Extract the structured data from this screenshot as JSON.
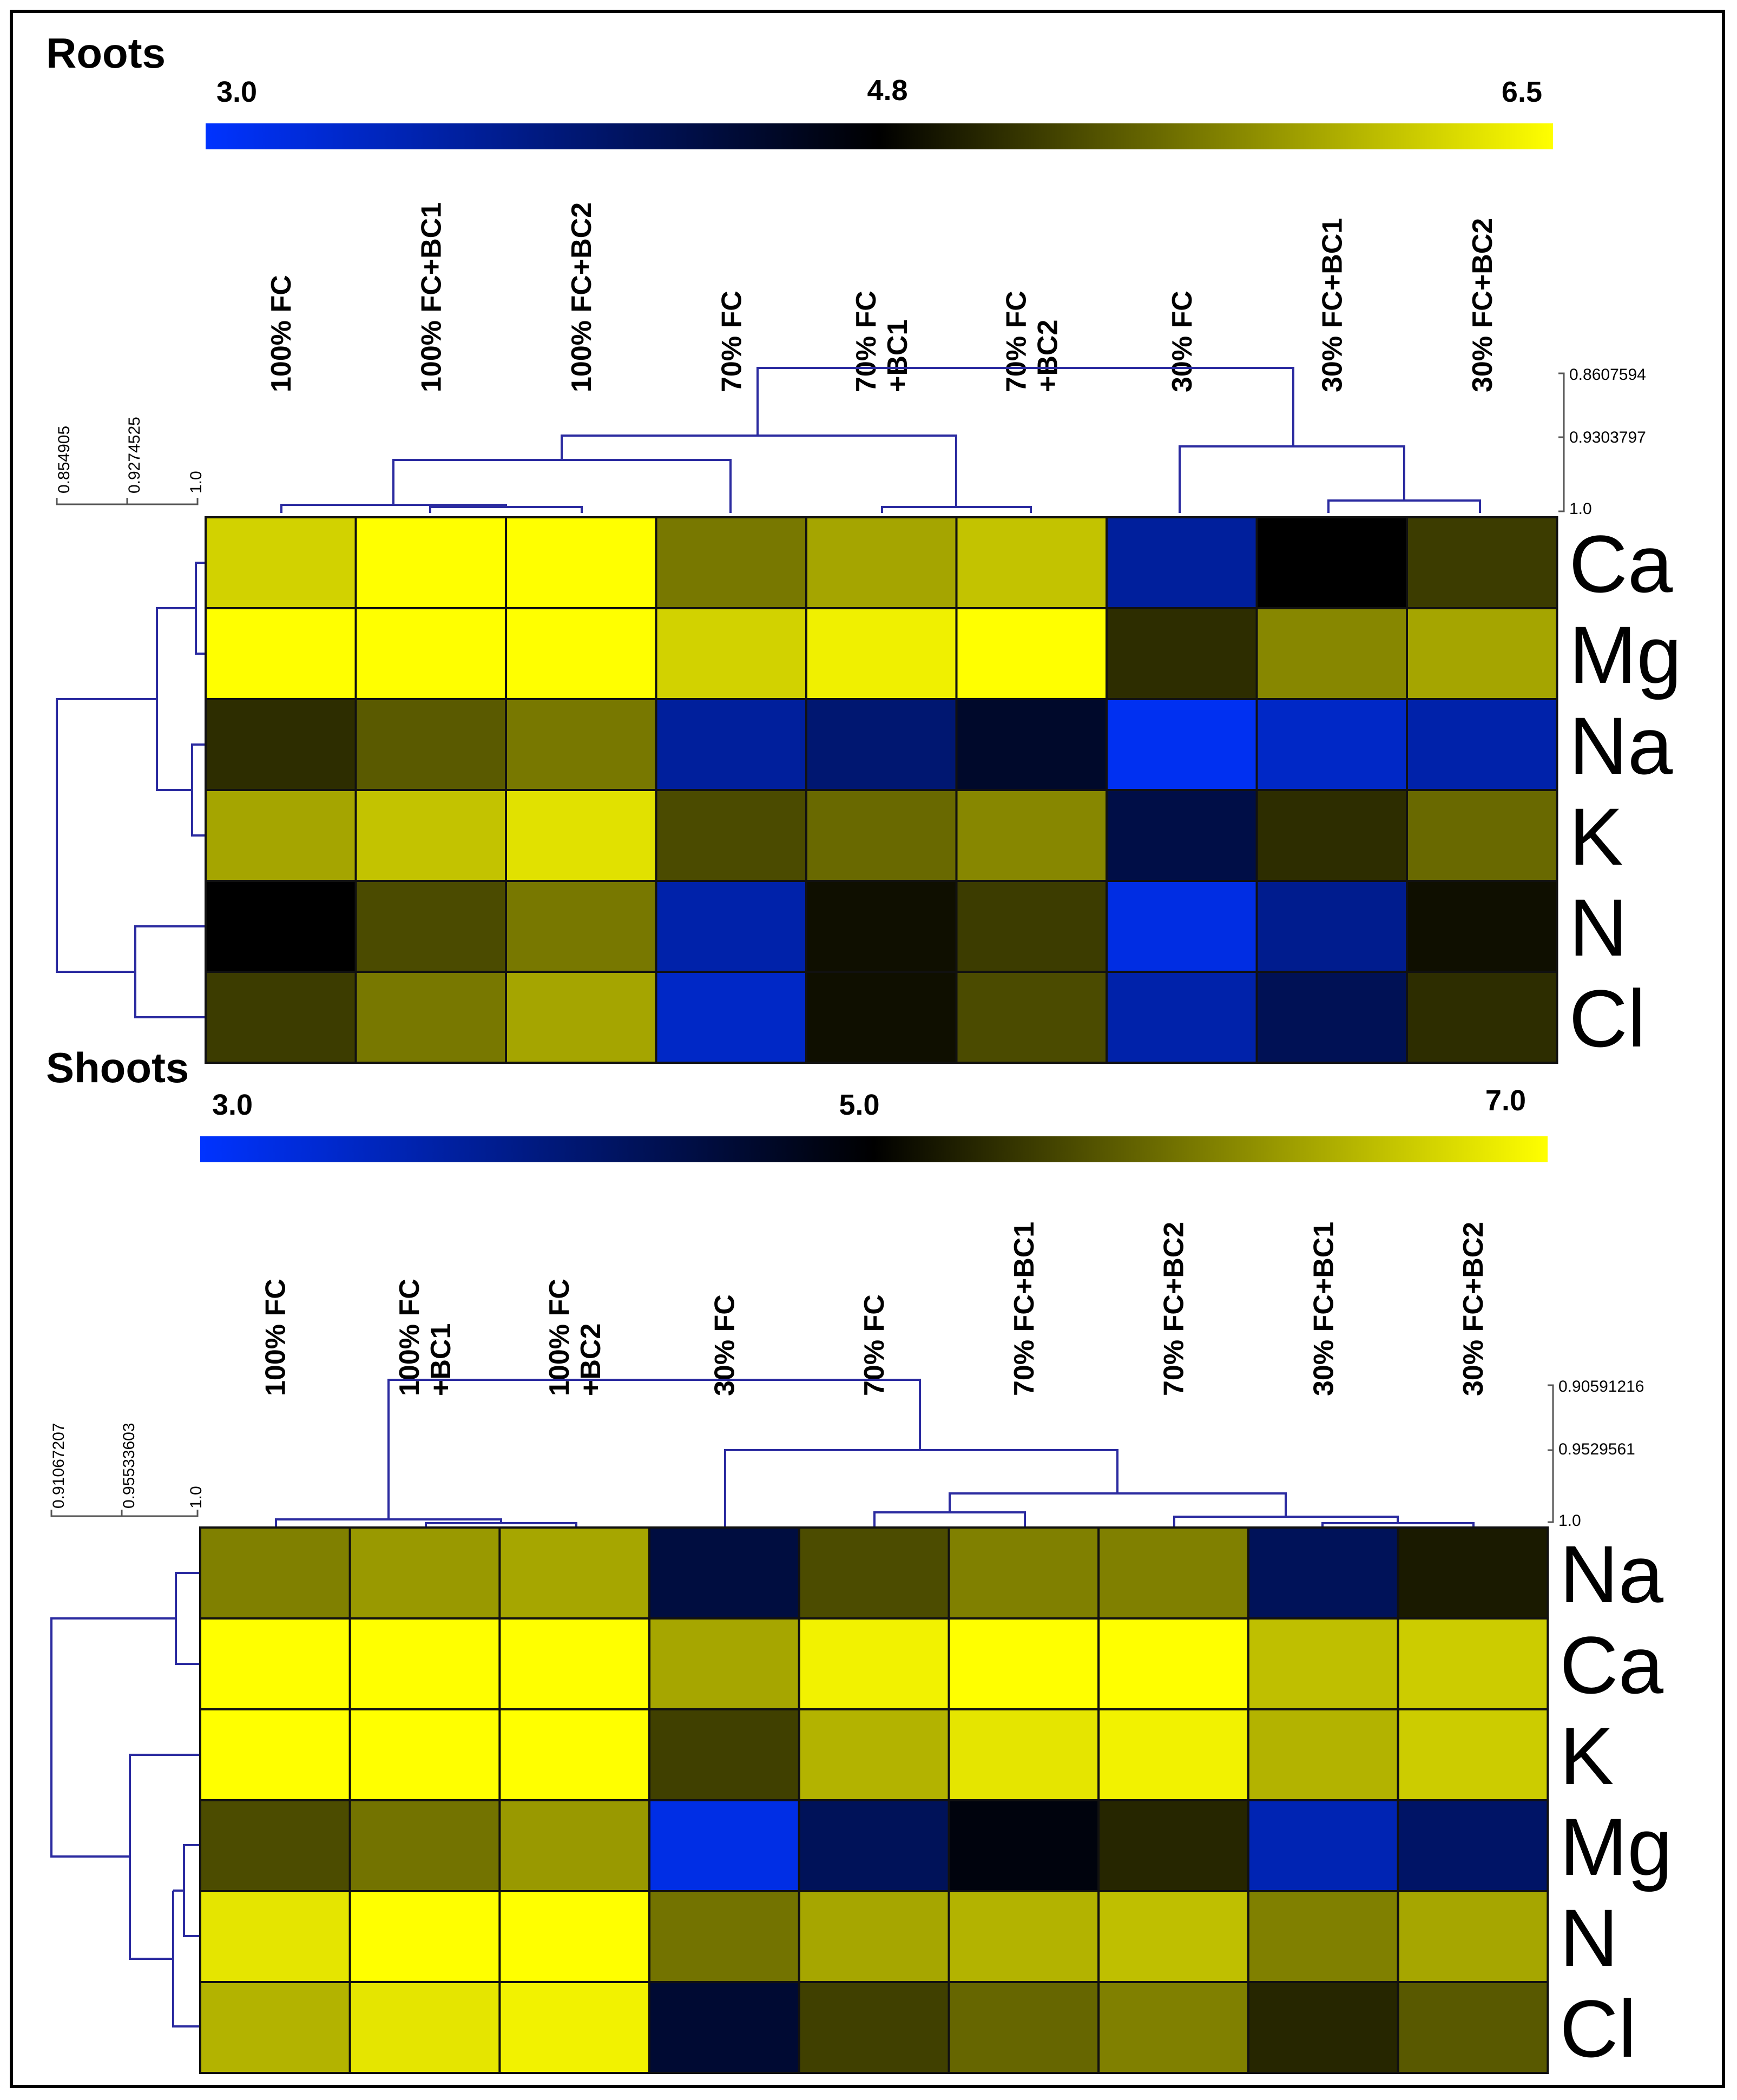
{
  "colors": {
    "low": "#0033ff",
    "mid": "#000000",
    "high": "#ffff00",
    "dendrogram": "#2b2ba0"
  },
  "chart_data": [
    {
      "type": "heatmap",
      "title": "Roots",
      "colorbar": {
        "min_label": "3.0",
        "mid_label": "4.8",
        "max_label": "6.5",
        "min": 3.0,
        "mid": 4.8,
        "max": 6.5
      },
      "columns": [
        [
          "100% FC"
        ],
        [
          "100% FC+BC1"
        ],
        [
          "100% FC+BC2"
        ],
        [
          "70% FC"
        ],
        [
          "70% FC",
          "+BC1"
        ],
        [
          "70% FC",
          "+BC2"
        ],
        [
          "30% FC"
        ],
        [
          "30% FC+BC1"
        ],
        [
          "30% FC+BC2"
        ]
      ],
      "rows": [
        "Ca",
        "Mg",
        "Na",
        "K",
        "N",
        "Cl"
      ],
      "values": [
        [
          6.2,
          6.5,
          6.5,
          5.6,
          5.9,
          6.1,
          3.7,
          4.8,
          5.2
        ],
        [
          6.5,
          6.5,
          6.5,
          6.2,
          6.4,
          6.5,
          5.1,
          5.7,
          5.9
        ],
        [
          5.1,
          5.4,
          5.6,
          3.7,
          4.0,
          4.5,
          3.1,
          3.4,
          3.6
        ],
        [
          5.9,
          6.1,
          6.3,
          5.3,
          5.5,
          5.7,
          4.3,
          5.1,
          5.5
        ],
        [
          4.8,
          5.3,
          5.6,
          3.6,
          4.9,
          5.2,
          3.2,
          3.8,
          4.9
        ],
        [
          5.2,
          5.6,
          5.9,
          3.4,
          4.9,
          5.3,
          3.6,
          4.2,
          5.1
        ]
      ],
      "column_dendrogram_scale": [
        "0.8607594",
        "0.9303797",
        "1.0"
      ],
      "row_dendrogram_scale": [
        "0.854905",
        "0.9274525",
        "1.0"
      ]
    },
    {
      "type": "heatmap",
      "title": "Shoots",
      "colorbar": {
        "min_label": "3.0",
        "mid_label": "5.0",
        "max_label": "7.0",
        "min": 3.0,
        "mid": 5.0,
        "max": 7.0
      },
      "columns": [
        [
          "100% FC"
        ],
        [
          "100% FC",
          "+BC1"
        ],
        [
          "100% FC",
          "+BC2"
        ],
        [
          "30% FC"
        ],
        [
          "70% FC"
        ],
        [
          "70% FC+BC1"
        ],
        [
          "70% FC+BC2"
        ],
        [
          "30% FC+BC1"
        ],
        [
          "30% FC+BC2"
        ]
      ],
      "rows": [
        "Na",
        "Ca",
        "K",
        "Mg",
        "N",
        "Cl"
      ],
      "values": [
        [
          6.0,
          6.2,
          6.3,
          4.5,
          5.6,
          6.0,
          6.0,
          4.3,
          5.2
        ],
        [
          7.0,
          7.0,
          7.0,
          6.3,
          6.9,
          7.0,
          7.0,
          6.5,
          6.6
        ],
        [
          7.0,
          7.0,
          7.0,
          5.5,
          6.4,
          6.8,
          6.9,
          6.4,
          6.6
        ],
        [
          5.6,
          5.9,
          6.2,
          3.2,
          4.3,
          4.9,
          5.3,
          3.6,
          4.2
        ],
        [
          6.8,
          7.0,
          7.0,
          5.9,
          6.3,
          6.4,
          6.5,
          6.0,
          6.3
        ],
        [
          6.4,
          6.8,
          6.9,
          4.6,
          5.5,
          5.8,
          6.0,
          5.3,
          5.7
        ]
      ],
      "column_dendrogram_scale": [
        "0.90591216",
        "0.9529561",
        "1.0"
      ],
      "row_dendrogram_scale": [
        "0.91067207",
        "0.95533603",
        "1.0"
      ]
    }
  ]
}
